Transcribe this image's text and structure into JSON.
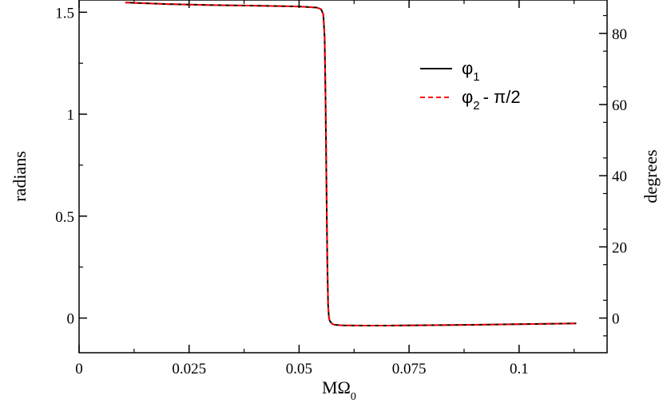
{
  "chart_data": {
    "type": "line",
    "xlabel_main": "MΩ",
    "xlabel_sub": "0",
    "ylabel_left": "radians",
    "ylabel_right": "degrees",
    "xlim": [
      0,
      0.12
    ],
    "ylim_left": [
      -0.17,
      1.56
    ],
    "ylim_right": [
      -9.74,
      89.38
    ],
    "x_ticks": [
      0,
      0.025,
      0.05,
      0.075,
      0.1
    ],
    "x_tick_labels": [
      "0",
      "0.025",
      "0.05",
      "0.075",
      "0.1"
    ],
    "y_left_ticks": [
      0,
      0.5,
      1,
      1.5
    ],
    "y_left_tick_labels": [
      "0",
      "0.5",
      "1",
      "1.5"
    ],
    "y_right_ticks": [
      0,
      20,
      40,
      60,
      80
    ],
    "y_right_tick_labels": [
      "0",
      "20",
      "40",
      "60",
      "80"
    ],
    "grid": false,
    "legend_position": "top-right",
    "series": [
      {
        "name_main": "φ",
        "name_sub": "1",
        "name_tail": "",
        "color": "#000000",
        "dash": "solid",
        "x": [
          0.0105,
          0.02,
          0.03,
          0.04,
          0.05,
          0.054,
          0.055,
          0.0555,
          0.0558,
          0.056,
          0.0562,
          0.0564,
          0.0566,
          0.0568,
          0.057,
          0.0575,
          0.058,
          0.06,
          0.065,
          0.07,
          0.08,
          0.09,
          0.1,
          0.11,
          0.113
        ],
        "y": [
          1.548,
          1.54,
          1.535,
          1.532,
          1.528,
          1.523,
          1.515,
          1.49,
          1.38,
          1.1,
          0.7,
          0.3,
          0.06,
          0.0,
          -0.015,
          -0.028,
          -0.033,
          -0.036,
          -0.037,
          -0.037,
          -0.035,
          -0.033,
          -0.03,
          -0.027,
          -0.026
        ]
      },
      {
        "name_main": "φ",
        "name_sub": "2",
        "name_tail": "- π/2",
        "color": "#ff0000",
        "dash": "dashed",
        "x": [
          0.0105,
          0.02,
          0.03,
          0.04,
          0.05,
          0.054,
          0.055,
          0.0555,
          0.0558,
          0.056,
          0.0562,
          0.0564,
          0.0566,
          0.0568,
          0.057,
          0.0575,
          0.058,
          0.06,
          0.065,
          0.07,
          0.08,
          0.09,
          0.1,
          0.11,
          0.113
        ],
        "y": [
          1.548,
          1.54,
          1.535,
          1.532,
          1.528,
          1.523,
          1.515,
          1.49,
          1.38,
          1.1,
          0.7,
          0.3,
          0.06,
          0.0,
          -0.015,
          -0.028,
          -0.033,
          -0.036,
          -0.037,
          -0.037,
          -0.035,
          -0.033,
          -0.03,
          -0.027,
          -0.026
        ]
      }
    ]
  }
}
